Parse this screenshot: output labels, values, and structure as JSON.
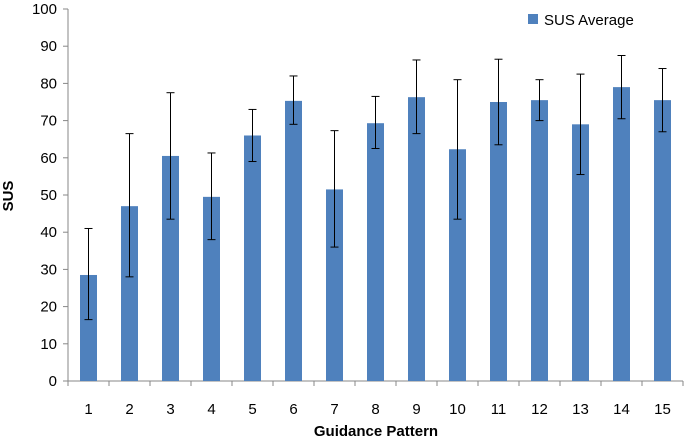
{
  "chart_data": {
    "type": "bar",
    "title": "",
    "xlabel": "Guidance Pattern",
    "ylabel": "SUS",
    "ylim": [
      0,
      100
    ],
    "yticks": [
      0,
      10,
      20,
      30,
      40,
      50,
      60,
      70,
      80,
      90,
      100
    ],
    "grid": false,
    "legend_position": "top-right",
    "categories": [
      "1",
      "2",
      "3",
      "4",
      "5",
      "6",
      "7",
      "8",
      "9",
      "10",
      "11",
      "12",
      "13",
      "14",
      "15"
    ],
    "series": [
      {
        "name": "SUS Average",
        "color": "#4f81bd",
        "values": [
          28.5,
          47,
          60.5,
          49.5,
          66,
          75.3,
          51.5,
          69.3,
          76.3,
          62.3,
          75,
          75.5,
          69,
          79,
          75.5
        ],
        "error_low": [
          16.5,
          28,
          43.5,
          38,
          59,
          69,
          36,
          62.5,
          66.5,
          43.5,
          63.5,
          70,
          55.5,
          70.5,
          67
        ],
        "error_high": [
          41,
          66.5,
          77.5,
          61.3,
          73,
          82,
          67.3,
          76.5,
          86.3,
          81,
          86.5,
          81,
          82.5,
          87.5,
          84
        ]
      }
    ]
  }
}
